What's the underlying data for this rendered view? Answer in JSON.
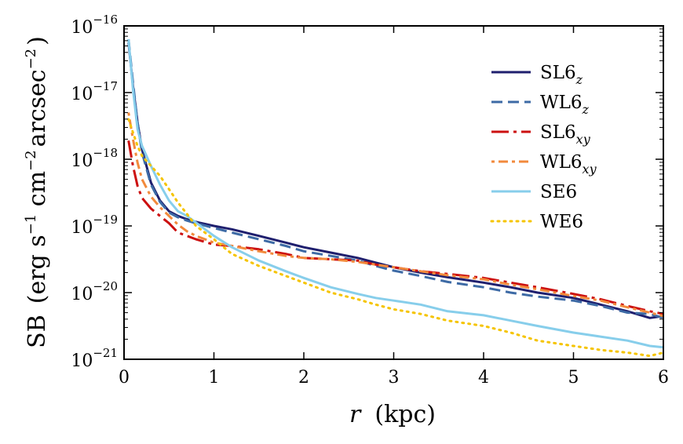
{
  "chart_data": {
    "type": "line",
    "title": "",
    "xlabel": {
      "var": "r",
      "unit": "(kpc)"
    },
    "ylabel": {
      "main": "SB",
      "unit_open": "(erg s",
      "exp1": "−1",
      "cm": " cm",
      "exp2": "−2",
      "arcsec": "arcsec",
      "exp3": "−2",
      "unit_close": ")"
    },
    "xlim": [
      0,
      6
    ],
    "ylim_log10": [
      -21,
      -16
    ],
    "y_scale": "log",
    "x_ticks": [
      0,
      1,
      2,
      3,
      4,
      5,
      6
    ],
    "x_tick_labels": [
      "0",
      "1",
      "2",
      "3",
      "4",
      "5",
      "6"
    ],
    "y_ticks_log10": [
      -16,
      -17,
      -18,
      -19,
      -20,
      -21
    ],
    "y_tick_base": "10",
    "y_tick_exponents": [
      "−16",
      "−17",
      "−18",
      "−19",
      "−20",
      "−21"
    ],
    "legend_position": "top-right",
    "series": [
      {
        "name": "SL6",
        "subscript": "z",
        "color": "#1f1f6e",
        "style": "solid",
        "points": [
          [
            0.05,
            -16.25
          ],
          [
            0.1,
            -16.9
          ],
          [
            0.15,
            -17.45
          ],
          [
            0.2,
            -17.85
          ],
          [
            0.3,
            -18.35
          ],
          [
            0.4,
            -18.62
          ],
          [
            0.5,
            -18.78
          ],
          [
            0.6,
            -18.85
          ],
          [
            0.7,
            -18.9
          ],
          [
            0.8,
            -18.94
          ],
          [
            1.0,
            -19.0
          ],
          [
            1.2,
            -19.05
          ],
          [
            1.5,
            -19.15
          ],
          [
            1.8,
            -19.25
          ],
          [
            2.0,
            -19.32
          ],
          [
            2.3,
            -19.4
          ],
          [
            2.6,
            -19.48
          ],
          [
            2.8,
            -19.55
          ],
          [
            3.0,
            -19.62
          ],
          [
            3.3,
            -19.7
          ],
          [
            3.6,
            -19.77
          ],
          [
            4.0,
            -19.85
          ],
          [
            4.3,
            -19.92
          ],
          [
            4.6,
            -20.0
          ],
          [
            5.0,
            -20.08
          ],
          [
            5.3,
            -20.18
          ],
          [
            5.6,
            -20.28
          ],
          [
            5.85,
            -20.38
          ],
          [
            6.0,
            -20.35
          ]
        ]
      },
      {
        "name": "WL6",
        "subscript": "z",
        "color": "#3d6aa5",
        "style": "dashed",
        "points": [
          [
            0.05,
            -16.2
          ],
          [
            0.1,
            -16.85
          ],
          [
            0.15,
            -17.45
          ],
          [
            0.2,
            -17.9
          ],
          [
            0.3,
            -18.38
          ],
          [
            0.4,
            -18.64
          ],
          [
            0.5,
            -18.8
          ],
          [
            0.6,
            -18.87
          ],
          [
            0.7,
            -18.92
          ],
          [
            0.8,
            -18.96
          ],
          [
            1.0,
            -19.03
          ],
          [
            1.2,
            -19.1
          ],
          [
            1.5,
            -19.2
          ],
          [
            1.8,
            -19.3
          ],
          [
            2.0,
            -19.38
          ],
          [
            2.3,
            -19.45
          ],
          [
            2.6,
            -19.52
          ],
          [
            2.8,
            -19.6
          ],
          [
            3.0,
            -19.67
          ],
          [
            3.3,
            -19.75
          ],
          [
            3.6,
            -19.84
          ],
          [
            4.0,
            -19.92
          ],
          [
            4.3,
            -20.0
          ],
          [
            4.6,
            -20.06
          ],
          [
            5.0,
            -20.12
          ],
          [
            5.3,
            -20.2
          ],
          [
            5.6,
            -20.3
          ],
          [
            5.85,
            -20.32
          ],
          [
            6.0,
            -20.38
          ]
        ]
      },
      {
        "name": "SL6",
        "subscript": "xy",
        "color": "#cc1010",
        "style": "dashdot",
        "points": [
          [
            0.05,
            -17.72
          ],
          [
            0.1,
            -18.1
          ],
          [
            0.15,
            -18.4
          ],
          [
            0.2,
            -18.58
          ],
          [
            0.3,
            -18.74
          ],
          [
            0.4,
            -18.85
          ],
          [
            0.5,
            -18.96
          ],
          [
            0.6,
            -19.1
          ],
          [
            0.7,
            -19.15
          ],
          [
            0.8,
            -19.2
          ],
          [
            1.0,
            -19.28
          ],
          [
            1.2,
            -19.3
          ],
          [
            1.5,
            -19.35
          ],
          [
            1.8,
            -19.42
          ],
          [
            2.0,
            -19.48
          ],
          [
            2.3,
            -19.5
          ],
          [
            2.6,
            -19.52
          ],
          [
            2.8,
            -19.58
          ],
          [
            3.0,
            -19.62
          ],
          [
            3.3,
            -19.68
          ],
          [
            3.6,
            -19.72
          ],
          [
            4.0,
            -19.78
          ],
          [
            4.3,
            -19.85
          ],
          [
            4.6,
            -19.92
          ],
          [
            5.0,
            -20.02
          ],
          [
            5.3,
            -20.1
          ],
          [
            5.6,
            -20.2
          ],
          [
            5.85,
            -20.28
          ],
          [
            6.0,
            -20.32
          ]
        ]
      },
      {
        "name": "WL6",
        "subscript": "xy",
        "color": "#f28a3c",
        "style": "dotdash",
        "points": [
          [
            0.05,
            -17.3
          ],
          [
            0.1,
            -17.7
          ],
          [
            0.15,
            -18.05
          ],
          [
            0.2,
            -18.3
          ],
          [
            0.3,
            -18.56
          ],
          [
            0.4,
            -18.72
          ],
          [
            0.5,
            -18.85
          ],
          [
            0.6,
            -18.98
          ],
          [
            0.7,
            -19.08
          ],
          [
            0.8,
            -19.15
          ],
          [
            1.0,
            -19.25
          ],
          [
            1.2,
            -19.3
          ],
          [
            1.5,
            -19.38
          ],
          [
            1.8,
            -19.45
          ],
          [
            2.0,
            -19.48
          ],
          [
            2.3,
            -19.5
          ],
          [
            2.6,
            -19.54
          ],
          [
            2.8,
            -19.58
          ],
          [
            3.0,
            -19.62
          ],
          [
            3.3,
            -19.68
          ],
          [
            3.6,
            -19.74
          ],
          [
            4.0,
            -19.8
          ],
          [
            4.3,
            -19.88
          ],
          [
            4.6,
            -19.95
          ],
          [
            5.0,
            -20.05
          ],
          [
            5.3,
            -20.12
          ],
          [
            5.6,
            -20.22
          ],
          [
            5.85,
            -20.3
          ],
          [
            6.0,
            -20.35
          ]
        ]
      },
      {
        "name": "SE6",
        "subscript": "",
        "color": "#87ceeb",
        "style": "solid",
        "points": [
          [
            0.05,
            -16.2
          ],
          [
            0.1,
            -16.95
          ],
          [
            0.15,
            -17.55
          ],
          [
            0.2,
            -17.8
          ],
          [
            0.3,
            -18.1
          ],
          [
            0.4,
            -18.38
          ],
          [
            0.5,
            -18.62
          ],
          [
            0.6,
            -18.78
          ],
          [
            0.7,
            -18.85
          ],
          [
            0.8,
            -18.95
          ],
          [
            1.0,
            -19.15
          ],
          [
            1.2,
            -19.32
          ],
          [
            1.5,
            -19.52
          ],
          [
            1.8,
            -19.68
          ],
          [
            2.0,
            -19.78
          ],
          [
            2.3,
            -19.92
          ],
          [
            2.6,
            -20.02
          ],
          [
            2.8,
            -20.08
          ],
          [
            3.0,
            -20.12
          ],
          [
            3.3,
            -20.18
          ],
          [
            3.6,
            -20.28
          ],
          [
            4.0,
            -20.34
          ],
          [
            4.3,
            -20.42
          ],
          [
            4.6,
            -20.5
          ],
          [
            5.0,
            -20.6
          ],
          [
            5.3,
            -20.66
          ],
          [
            5.6,
            -20.72
          ],
          [
            5.85,
            -20.8
          ],
          [
            6.0,
            -20.82
          ]
        ]
      },
      {
        "name": "WE6",
        "subscript": "",
        "color": "#f5c400",
        "style": "dotted",
        "points": [
          [
            0.05,
            -17.4
          ],
          [
            0.1,
            -17.6
          ],
          [
            0.15,
            -17.8
          ],
          [
            0.2,
            -17.95
          ],
          [
            0.3,
            -18.1
          ],
          [
            0.4,
            -18.25
          ],
          [
            0.5,
            -18.45
          ],
          [
            0.6,
            -18.65
          ],
          [
            0.7,
            -18.82
          ],
          [
            0.8,
            -19.0
          ],
          [
            1.0,
            -19.2
          ],
          [
            1.2,
            -19.42
          ],
          [
            1.5,
            -19.6
          ],
          [
            1.8,
            -19.75
          ],
          [
            2.0,
            -19.85
          ],
          [
            2.3,
            -20.0
          ],
          [
            2.6,
            -20.1
          ],
          [
            2.8,
            -20.18
          ],
          [
            3.0,
            -20.25
          ],
          [
            3.3,
            -20.32
          ],
          [
            3.6,
            -20.42
          ],
          [
            4.0,
            -20.5
          ],
          [
            4.3,
            -20.6
          ],
          [
            4.6,
            -20.72
          ],
          [
            5.0,
            -20.8
          ],
          [
            5.3,
            -20.86
          ],
          [
            5.6,
            -20.9
          ],
          [
            5.85,
            -20.95
          ],
          [
            6.0,
            -20.9
          ]
        ]
      }
    ]
  }
}
